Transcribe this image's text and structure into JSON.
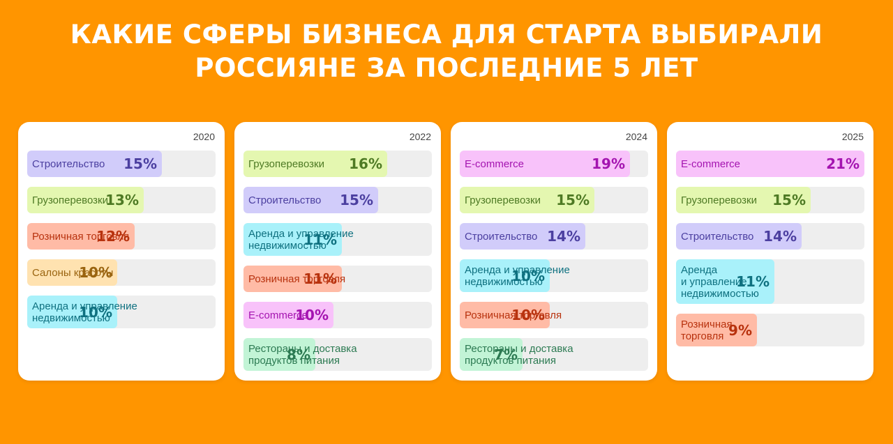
{
  "title": {
    "line1": "КАКИЕ СФЕРЫ БИЗНЕСА ДЛЯ СТАРТА ВЫБИРАЛИ",
    "line2": "РОССИЯНЕ ЗА ПОСЛЕДНИЕ 5 ЛЕТ"
  },
  "colors": {
    "background": "#FF9500",
    "card": "#FFFFFF",
    "track": "#EEEEEE"
  },
  "chart_data": [
    {
      "type": "bar",
      "year": "2020",
      "unit": "%",
      "bars": [
        {
          "label": "Строительство",
          "value": 15,
          "fill": "#D1CCFA",
          "text": "#4B3FA0"
        },
        {
          "label": "Грузоперевозки",
          "value": 13,
          "fill": "#E4F7B0",
          "text": "#4E7A24"
        },
        {
          "label": "Розничная торговля",
          "value": 12,
          "fill": "#FFBBA6",
          "text": "#B8320E"
        },
        {
          "label": "Салоны красоты",
          "value": 10,
          "fill": "#FFE2B0",
          "text": "#9A6410"
        },
        {
          "label": "Аренда и управление\nнедвижимостью",
          "value": 10,
          "fill": "#A9F1FA",
          "text": "#0F7180"
        }
      ]
    },
    {
      "type": "bar",
      "year": "2022",
      "unit": "%",
      "bars": [
        {
          "label": "Грузоперевозки",
          "value": 16,
          "fill": "#E4F7B0",
          "text": "#4E7A24"
        },
        {
          "label": "Строительство",
          "value": 15,
          "fill": "#D1CCFA",
          "text": "#4B3FA0"
        },
        {
          "label": "Аренда и управление\nнедвижимостью",
          "value": 11,
          "fill": "#A9F1FA",
          "text": "#0F7180"
        },
        {
          "label": "Розничная торговля",
          "value": 11,
          "fill": "#FFBBA6",
          "text": "#B8320E"
        },
        {
          "label": "E-commerce",
          "value": 10,
          "fill": "#F8C2FA",
          "text": "#A414B0"
        },
        {
          "label": "Рестораны и доставка\nпродуктов питания",
          "value": 8,
          "fill": "#C2F4D6",
          "text": "#2C7A52"
        }
      ]
    },
    {
      "type": "bar",
      "year": "2024",
      "unit": "%",
      "bars": [
        {
          "label": "E-commerce",
          "value": 19,
          "fill": "#F8C2FA",
          "text": "#A414B0"
        },
        {
          "label": "Грузоперевозки",
          "value": 15,
          "fill": "#E4F7B0",
          "text": "#4E7A24"
        },
        {
          "label": "Строительство",
          "value": 14,
          "fill": "#D1CCFA",
          "text": "#4B3FA0"
        },
        {
          "label": "Аренда и управление\nнедвижимостью",
          "value": 10,
          "fill": "#A9F1FA",
          "text": "#0F7180"
        },
        {
          "label": "Розничная торговля",
          "value": 10,
          "fill": "#FFBBA6",
          "text": "#B8320E"
        },
        {
          "label": "Рестораны и доставка\nпродуктов питания",
          "value": 7,
          "fill": "#C2F4D6",
          "text": "#2C7A52"
        }
      ]
    },
    {
      "type": "bar",
      "year": "2025",
      "unit": "%",
      "bars": [
        {
          "label": "E-commerce",
          "value": 21,
          "fill": "#F8C2FA",
          "text": "#A414B0"
        },
        {
          "label": "Грузоперевозки",
          "value": 15,
          "fill": "#E4F7B0",
          "text": "#4E7A24"
        },
        {
          "label": "Строительство",
          "value": 14,
          "fill": "#D1CCFA",
          "text": "#4B3FA0"
        },
        {
          "label": "Аренда\nи управление\nнедвижимостью",
          "value": 11,
          "fill": "#A9F1FA",
          "text": "#0F7180"
        },
        {
          "label": "Розничная\nторговля",
          "value": 9,
          "fill": "#FFBBA6",
          "text": "#B8320E"
        }
      ]
    }
  ]
}
